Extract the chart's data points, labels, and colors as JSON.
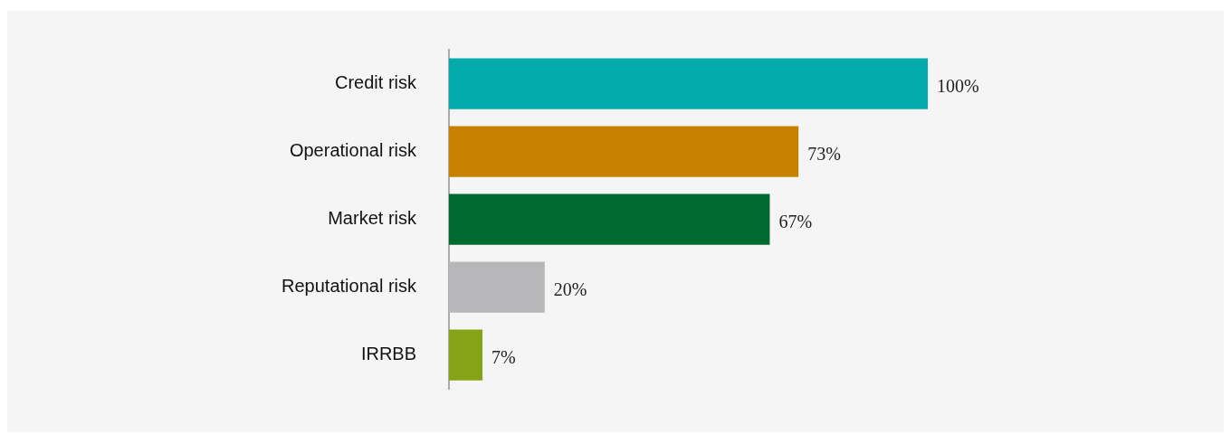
{
  "chart_data": {
    "type": "bar",
    "orientation": "horizontal",
    "categories": [
      "Credit risk",
      "Operational risk",
      "Market risk",
      "Reputational risk",
      "IRRBB"
    ],
    "values": [
      100,
      73,
      67,
      20,
      7
    ],
    "colors": [
      "#00aaad",
      "#c88000",
      "#006a2e",
      "#b7b7b9",
      "#86a216"
    ],
    "value_labels": [
      "100%",
      "73%",
      "67%",
      "20%",
      "7%"
    ],
    "tick_labels": "y",
    "grid": false,
    "legend": false
  }
}
